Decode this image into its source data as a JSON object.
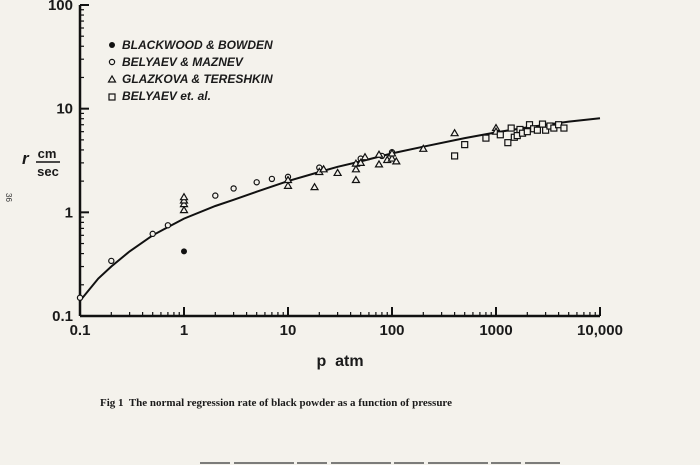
{
  "page_number": "36",
  "caption": "Fig 1  The normal regression rate of black powder as a function of pressure",
  "chart_data": {
    "type": "scatter",
    "xscale": "log",
    "yscale": "log",
    "xlim": [
      0.1,
      10000
    ],
    "ylim": [
      0.1,
      100
    ],
    "xlabel": "p  atm",
    "ylabel_main": "r",
    "ylabel_num": "cm",
    "ylabel_den": "sec",
    "xticks": [
      {
        "v": 0.1,
        "label": "0.1"
      },
      {
        "v": 1,
        "label": "1"
      },
      {
        "v": 10,
        "label": "10"
      },
      {
        "v": 100,
        "label": "100"
      },
      {
        "v": 1000,
        "label": "1000"
      },
      {
        "v": 10000,
        "label": "10,000"
      }
    ],
    "yticks": [
      {
        "v": 0.1,
        "label": "0.1"
      },
      {
        "v": 1,
        "label": "1"
      },
      {
        "v": 10,
        "label": "10"
      },
      {
        "v": 100,
        "label": "100"
      }
    ],
    "grid": false,
    "legend_position": "top-left",
    "curve": {
      "points": [
        [
          0.1,
          0.14
        ],
        [
          0.15,
          0.23
        ],
        [
          0.2,
          0.3
        ],
        [
          0.3,
          0.42
        ],
        [
          0.5,
          0.6
        ],
        [
          0.7,
          0.72
        ],
        [
          1,
          0.87
        ],
        [
          2,
          1.15
        ],
        [
          3,
          1.32
        ],
        [
          5,
          1.58
        ],
        [
          10,
          2.0
        ],
        [
          20,
          2.45
        ],
        [
          30,
          2.75
        ],
        [
          50,
          3.1
        ],
        [
          100,
          3.7
        ],
        [
          200,
          4.3
        ],
        [
          500,
          5.2
        ],
        [
          1000,
          5.9
        ],
        [
          2000,
          6.6
        ],
        [
          5000,
          7.5
        ],
        [
          10000,
          8.1
        ]
      ]
    },
    "series": [
      {
        "name": "BLACKWOOD & BOWDEN",
        "marker": "filled-circle",
        "points": [
          [
            1,
            0.42
          ]
        ]
      },
      {
        "name": "BELYAEV & MAZNEV",
        "marker": "open-circle",
        "points": [
          [
            0.1,
            0.15
          ],
          [
            0.2,
            0.34
          ],
          [
            0.5,
            0.62
          ],
          [
            0.7,
            0.75
          ],
          [
            2,
            1.45
          ],
          [
            3,
            1.7
          ],
          [
            5,
            1.95
          ],
          [
            7,
            2.1
          ],
          [
            10,
            2.2
          ],
          [
            20,
            2.7
          ],
          [
            50,
            3.3
          ],
          [
            80,
            3.5
          ],
          [
            100,
            3.8
          ]
        ]
      },
      {
        "name": "GLAZKOVA & TERESHKIN",
        "marker": "open-triangle",
        "points": [
          [
            1,
            1.05
          ],
          [
            1,
            1.2
          ],
          [
            1,
            1.3
          ],
          [
            1,
            1.4
          ],
          [
            10,
            1.8
          ],
          [
            10,
            2.05
          ],
          [
            18,
            1.75
          ],
          [
            20,
            2.45
          ],
          [
            22,
            2.6
          ],
          [
            30,
            2.4
          ],
          [
            45,
            2.05
          ],
          [
            45,
            2.6
          ],
          [
            45,
            2.95
          ],
          [
            50,
            3.0
          ],
          [
            55,
            3.4
          ],
          [
            75,
            2.9
          ],
          [
            75,
            3.6
          ],
          [
            90,
            3.2
          ],
          [
            100,
            3.3
          ],
          [
            100,
            3.7
          ],
          [
            110,
            3.1
          ],
          [
            200,
            4.1
          ],
          [
            400,
            5.8
          ],
          [
            1000,
            6.5
          ],
          [
            1000,
            6.0
          ]
        ]
      },
      {
        "name": "BELYAEV et. al.",
        "marker": "open-square",
        "points": [
          [
            400,
            3.5
          ],
          [
            500,
            4.5
          ],
          [
            800,
            5.2
          ],
          [
            1100,
            5.6
          ],
          [
            1300,
            4.7
          ],
          [
            1400,
            6.5
          ],
          [
            1500,
            5.3
          ],
          [
            1600,
            5.5
          ],
          [
            1700,
            6.3
          ],
          [
            1800,
            5.8
          ],
          [
            2000,
            6.0
          ],
          [
            2100,
            7.0
          ],
          [
            2300,
            6.4
          ],
          [
            2500,
            6.2
          ],
          [
            2800,
            7.1
          ],
          [
            3000,
            6.2
          ],
          [
            3300,
            6.8
          ],
          [
            3600,
            6.5
          ],
          [
            4000,
            7.0
          ],
          [
            4500,
            6.5
          ]
        ]
      }
    ]
  }
}
